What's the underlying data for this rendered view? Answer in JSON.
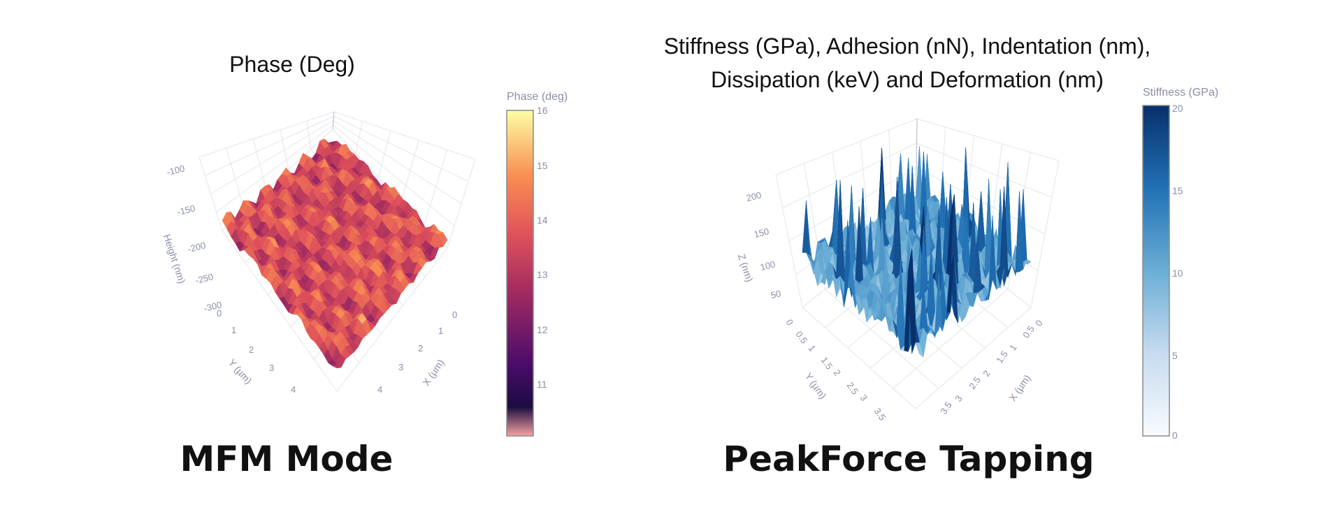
{
  "chart_data": [
    {
      "type": "surface3d",
      "title": "Phase (Deg)",
      "caption": "MFM Mode",
      "xlabel": "X (µm)",
      "ylabel": "Y (µm)",
      "zlabel": "Height (nm)",
      "x_ticks": [
        "0",
        "1",
        "2",
        "3",
        "4"
      ],
      "y_ticks": [
        "0",
        "1",
        "2",
        "3",
        "4"
      ],
      "z_ticks": [
        "-100",
        "-150",
        "-200",
        "-250",
        "-300"
      ],
      "xlim": [
        0,
        5
      ],
      "ylim": [
        0,
        5
      ],
      "zlim": [
        -300,
        -90
      ],
      "colorbar": {
        "title": "Phase (deg)",
        "range": [
          10,
          16
        ],
        "ticks": [
          "16",
          "15",
          "14",
          "13",
          "12",
          "11"
        ],
        "colorscale": [
          "#f3a2a0",
          "#1b0c41",
          "#4a0c6b",
          "#a52c60",
          "#e0525a",
          "#f98e52",
          "#fcffa4"
        ]
      },
      "surface_color": "#d96148"
    },
    {
      "type": "surface3d",
      "title_lines": [
        "Stiffness (GPa), Adhesion (nN), Indentation (nm),",
        "Dissipation (keV) and Deformation (nm)"
      ],
      "caption": "PeakForce Tapping",
      "xlabel": "X (µm)",
      "ylabel": "Y (µm)",
      "zlabel": "Z (nm)",
      "x_ticks": [
        "0",
        "0.5",
        "1",
        "1.5",
        "2",
        "2.5",
        "3",
        "3.5"
      ],
      "y_ticks": [
        "0",
        "0.5",
        "1",
        "1.5",
        "2",
        "2.5",
        "3",
        "3.5"
      ],
      "z_ticks": [
        "200",
        "150",
        "100",
        "50"
      ],
      "xlim": [
        0,
        3.5
      ],
      "ylim": [
        0,
        3.5
      ],
      "zlim": [
        0,
        230
      ],
      "colorbar": {
        "title": "Stiffness (GPa)",
        "range": [
          0,
          20
        ],
        "ticks": [
          "20",
          "15",
          "10",
          "5",
          "0"
        ],
        "colorscale": [
          "#f7fbff",
          "#c6dbef",
          "#6baed6",
          "#2171b5",
          "#08306b"
        ]
      },
      "surface_color": "#3f80b4"
    }
  ]
}
